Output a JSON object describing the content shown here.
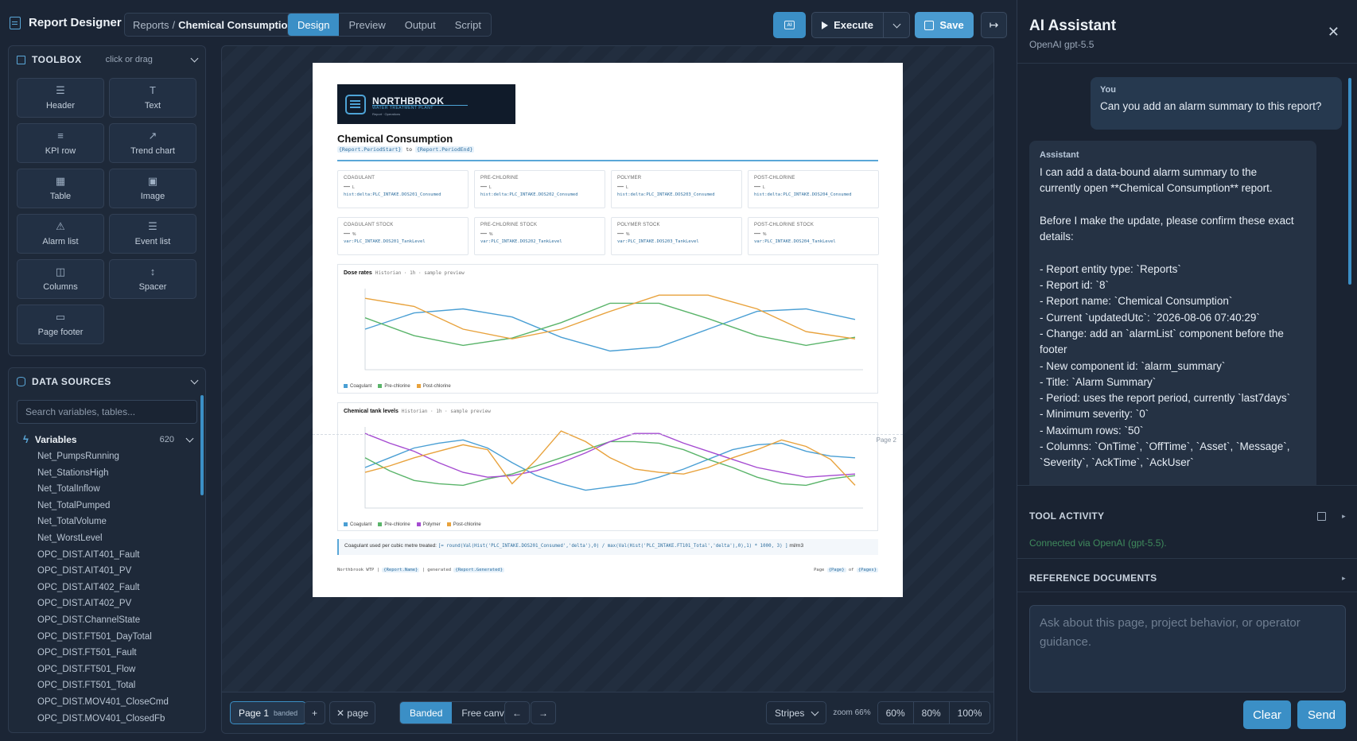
{
  "app": {
    "title": "Report Designer"
  },
  "breadcrumb": {
    "parent": "Reports",
    "separator": "/",
    "current": "Chemical Consumption"
  },
  "tabs": [
    "Design",
    "Preview",
    "Output",
    "Script"
  ],
  "toolbar": {
    "ai_label": "AI",
    "execute_label": "Execute",
    "save_label": "Save"
  },
  "toolbox": {
    "title": "TOOLBOX",
    "hint": "click or drag",
    "tools": [
      {
        "label": "Header",
        "icon": "header-icon",
        "glyph": "☰"
      },
      {
        "label": "Text",
        "icon": "text-icon",
        "glyph": "T"
      },
      {
        "label": "KPI row",
        "icon": "kpi-icon",
        "glyph": "≡"
      },
      {
        "label": "Trend chart",
        "icon": "trend-chart-icon",
        "glyph": "↗"
      },
      {
        "label": "Table",
        "icon": "table-icon",
        "glyph": "▦"
      },
      {
        "label": "Image",
        "icon": "image-icon",
        "glyph": "▣"
      },
      {
        "label": "Alarm list",
        "icon": "alarm-icon",
        "glyph": "⚠"
      },
      {
        "label": "Event list",
        "icon": "event-list-icon",
        "glyph": "☰"
      },
      {
        "label": "Columns",
        "icon": "columns-icon",
        "glyph": "◫"
      },
      {
        "label": "Spacer",
        "icon": "spacer-icon",
        "glyph": "↕"
      },
      {
        "label": "Page footer",
        "icon": "page-footer-icon",
        "glyph": "▭"
      }
    ]
  },
  "datasources": {
    "title": "DATA SOURCES",
    "search_placeholder": "Search variables, tables...",
    "variables_label": "Variables",
    "variables_count": "620",
    "items": [
      "Net_PumpsRunning",
      "Net_StationsHigh",
      "Net_TotalInflow",
      "Net_TotalPumped",
      "Net_TotalVolume",
      "Net_WorstLevel",
      "OPC_DIST.AIT401_Fault",
      "OPC_DIST.AIT401_PV",
      "OPC_DIST.AIT402_Fault",
      "OPC_DIST.AIT402_PV",
      "OPC_DIST.ChannelState",
      "OPC_DIST.FT501_DayTotal",
      "OPC_DIST.FT501_Fault",
      "OPC_DIST.FT501_Flow",
      "OPC_DIST.FT501_Total",
      "OPC_DIST.MOV401_CloseCmd",
      "OPC_DIST.MOV401_ClosedFb"
    ]
  },
  "report": {
    "logo_title": "NORTHBROOK",
    "logo_subtitle": "WATER TREATMENT PLANT",
    "logo_tagline": "Report · Operations",
    "title": "Chemical Consumption",
    "period_start": "{Report.PeriodStart}",
    "period_to": "to",
    "period_end": "{Report.PeriodEnd}",
    "kpis_consumed": [
      {
        "label": "COAGULANT",
        "value": "—",
        "unit": "L",
        "bind": "hist:delta:PLC_INTAKE.DOS201_Consumed"
      },
      {
        "label": "PRE-CHLORINE",
        "value": "—",
        "unit": "L",
        "bind": "hist:delta:PLC_INTAKE.DOS202_Consumed"
      },
      {
        "label": "POLYMER",
        "value": "—",
        "unit": "L",
        "bind": "hist:delta:PLC_INTAKE.DOS203_Consumed"
      },
      {
        "label": "POST-CHLORINE",
        "value": "—",
        "unit": "L",
        "bind": "hist:delta:PLC_INTAKE.DOS204_Consumed"
      }
    ],
    "kpis_stock": [
      {
        "label": "COAGULANT STOCK",
        "value": "—",
        "unit": "%",
        "bind": "var:PLC_INTAKE.DOS201_TankLevel"
      },
      {
        "label": "PRE-CHLORINE STOCK",
        "value": "—",
        "unit": "%",
        "bind": "var:PLC_INTAKE.DOS202_TankLevel"
      },
      {
        "label": "POLYMER STOCK",
        "value": "—",
        "unit": "%",
        "bind": "var:PLC_INTAKE.DOS203_TankLevel"
      },
      {
        "label": "POST-CHLORINE STOCK",
        "value": "—",
        "unit": "%",
        "bind": "var:PLC_INTAKE.DOS204_TankLevel"
      }
    ],
    "chart1_title": "Dose rates",
    "chart1_sub": "Historian · 1h · sample preview",
    "chart2_title": "Chemical tank levels",
    "chart2_sub": "Historian · 1h · sample preview",
    "page2_label": "Page 2",
    "calc_label": "Coagulant used per cubic metre treated:",
    "calc_expr": "[= round(Val(Hist('PLC_INTAKE.DOS201_Consumed','delta'),0) / max(Val(Hist('PLC_INTAKE.FT101_Total','delta'),0),1) * 1000, 3) ]",
    "calc_unit": "ml/m3",
    "footer_org": "Northbrook WTP |",
    "footer_name": "{Report.Name}",
    "footer_mid": "| generated",
    "footer_gen": "{Report.Generated}",
    "footer_page": "Page",
    "footer_page_tok": "{Page}",
    "footer_of": "of",
    "footer_pages_tok": "{Pages}"
  },
  "chart_data": [
    {
      "type": "line",
      "title": "Dose rates",
      "x": [
        0,
        1,
        2,
        3,
        4,
        5,
        6,
        7,
        8,
        9,
        10
      ],
      "ylim": [
        0,
        100
      ],
      "series": [
        {
          "name": "Coagulant",
          "color": "#4a9fd4",
          "values": [
            50,
            70,
            75,
            65,
            40,
            23,
            28,
            50,
            72,
            75,
            62
          ]
        },
        {
          "name": "Pre-chlorine",
          "color": "#5ab46a",
          "values": [
            64,
            42,
            30,
            39,
            58,
            82,
            82,
            63,
            42,
            30,
            40
          ]
        },
        {
          "name": "Post-chlorine",
          "color": "#e8a23c",
          "values": [
            88,
            78,
            50,
            38,
            50,
            72,
            92,
            92,
            75,
            47,
            38
          ]
        }
      ]
    },
    {
      "type": "line",
      "title": "Chemical tank levels",
      "x": [
        0,
        1,
        2,
        3,
        4,
        5,
        6,
        7,
        8,
        9,
        10,
        11,
        12,
        13,
        14,
        15,
        16,
        17,
        18,
        19,
        20
      ],
      "ylim": [
        0,
        100
      ],
      "series": [
        {
          "name": "Coagulant",
          "color": "#4a9fd4",
          "values": [
            50,
            62,
            74,
            80,
            84,
            74,
            56,
            40,
            30,
            22,
            26,
            30,
            38,
            48,
            60,
            72,
            78,
            80,
            70,
            64,
            62
          ]
        },
        {
          "name": "Pre-chlorine",
          "color": "#5ab46a",
          "values": [
            62,
            46,
            34,
            30,
            28,
            36,
            42,
            52,
            62,
            72,
            82,
            82,
            80,
            72,
            60,
            50,
            38,
            30,
            28,
            36,
            40
          ]
        },
        {
          "name": "Polymer",
          "color": "#a54bd1",
          "values": [
            92,
            80,
            70,
            56,
            44,
            38,
            40,
            46,
            56,
            68,
            82,
            92,
            92,
            80,
            70,
            60,
            50,
            44,
            38,
            40,
            42
          ]
        },
        {
          "name": "Post-chlorine",
          "color": "#e8a23c",
          "values": [
            44,
            52,
            62,
            70,
            78,
            72,
            30,
            60,
            95,
            82,
            62,
            48,
            44,
            42,
            50,
            62,
            72,
            84,
            76,
            60,
            28
          ]
        }
      ]
    }
  ],
  "bottombar": {
    "page_label": "Page 1",
    "page_tag": "banded",
    "add_label": "+",
    "remove_label": "✕ page",
    "mode_banded": "Banded",
    "mode_free": "Free canvas",
    "prev": "←",
    "next": "→",
    "background": "Stripes",
    "zoom_label": "zoom 66%",
    "zooms": [
      "60%",
      "80%",
      "100%"
    ]
  },
  "assistant": {
    "title": "AI Assistant",
    "model": "OpenAI  gpt-5.5",
    "user_who": "You",
    "user_msg": "Can you add an alarm summary to this report?",
    "asst_who": "Assistant",
    "asst_lines": [
      "I can add a data-bound alarm summary to the",
      "currently open **Chemical Consumption** report.",
      "",
      "Before I make the update, please confirm these exact",
      "details:",
      "",
      "- Report entity type: `Reports`",
      "- Report id: `8`",
      "- Report name: `Chemical Consumption`",
      "- Current `updatedUtc`: `2026-08-06 07:40:29`",
      "- Change: add an `alarmList` component before the",
      "footer",
      "- New component id: `alarm_summary`",
      "- Title: `Alarm Summary`",
      "- Period: uses the report period, currently `last7days`",
      "- Minimum severity: `0`",
      "- Maximum rows: `50`",
      "- Columns: `OnTime`, `OffTime`, `Asset`, `Message`,",
      "`Severity`, `AckTime`, `AckUser`"
    ],
    "tool_activity": "TOOL ACTIVITY",
    "connection": "Connected via OpenAI (gpt-5.5).",
    "reference_docs": "REFERENCE DOCUMENTS",
    "prompt_placeholder": "Ask about this page, project behavior, or operator guidance.",
    "clear_label": "Clear",
    "send_label": "Send"
  }
}
